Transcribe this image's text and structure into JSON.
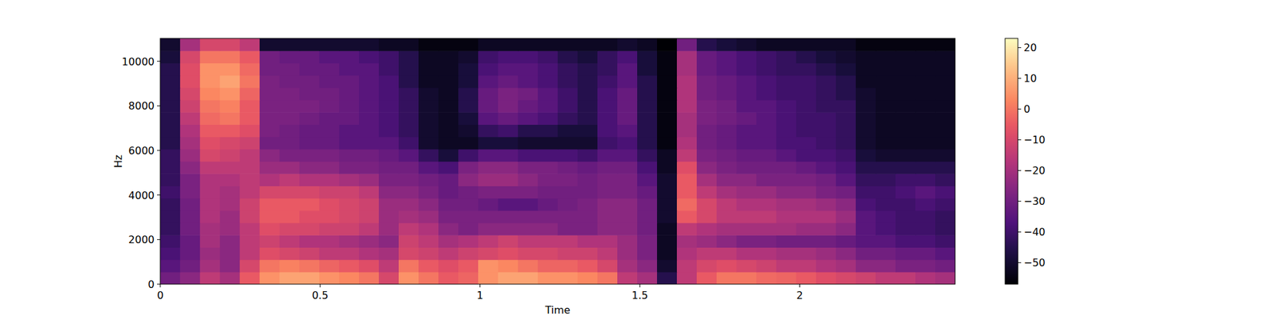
{
  "chart_data": {
    "type": "heatmap",
    "x_label": "Time",
    "y_label": "Hz",
    "xlim": [
      0,
      2.486
    ],
    "ylim": [
      0,
      11025
    ],
    "xticks": [
      0,
      0.5,
      1,
      1.5,
      2
    ],
    "yticks": [
      0,
      2000,
      4000,
      6000,
      8000,
      10000
    ],
    "clim": [
      -57,
      23
    ],
    "cticks": [
      -50,
      -40,
      -30,
      -20,
      -10,
      0,
      10,
      20
    ],
    "values": [
      [
        -30,
        -25,
        -15,
        -20,
        -5,
        5,
        8,
        8,
        5,
        3,
        0,
        -10,
        5,
        0,
        -5,
        -3,
        5,
        8,
        8,
        5,
        5,
        3,
        0,
        -15,
        -20,
        -45,
        -15,
        -5,
        0,
        0,
        -2,
        -3,
        -5,
        -8,
        -10,
        -12,
        -15,
        -15,
        -18,
        -20
      ],
      [
        -35,
        -30,
        -20,
        -25,
        -10,
        0,
        2,
        0,
        -3,
        -5,
        -8,
        -15,
        0,
        -5,
        -8,
        -5,
        5,
        3,
        0,
        -3,
        -3,
        -5,
        -10,
        -20,
        -25,
        -50,
        -15,
        -10,
        -8,
        -10,
        -12,
        -15,
        -15,
        -18,
        -20,
        -25,
        -25,
        -28,
        -28,
        -30
      ],
      [
        -38,
        -32,
        -22,
        -25,
        -15,
        -8,
        -10,
        -12,
        -15,
        -15,
        -18,
        -20,
        -10,
        -12,
        -15,
        -12,
        -10,
        -8,
        -10,
        -10,
        -12,
        -12,
        -15,
        -22,
        -28,
        -52,
        -18,
        -15,
        -15,
        -18,
        -18,
        -20,
        -20,
        -22,
        -25,
        -30,
        -30,
        -32,
        -32,
        -35
      ],
      [
        -40,
        -32,
        -20,
        -25,
        -15,
        -12,
        -15,
        -18,
        -18,
        -20,
        -22,
        -25,
        -12,
        -15,
        -20,
        -18,
        -15,
        -12,
        -15,
        -15,
        -15,
        -18,
        -18,
        -22,
        -28,
        -52,
        -20,
        -22,
        -25,
        -28,
        -28,
        -30,
        -30,
        -30,
        -32,
        -35,
        -35,
        -38,
        -38,
        -40
      ],
      [
        -42,
        -30,
        -20,
        -22,
        -15,
        -8,
        -10,
        -10,
        -12,
        -12,
        -15,
        -22,
        -15,
        -18,
        -25,
        -28,
        -25,
        -25,
        -25,
        -25,
        -28,
        -28,
        -25,
        -25,
        -30,
        -52,
        -15,
        -18,
        -20,
        -20,
        -20,
        -20,
        -22,
        -22,
        -25,
        -35,
        -38,
        -40,
        -40,
        -42
      ],
      [
        -42,
        -30,
        -18,
        -22,
        -12,
        -5,
        -5,
        -8,
        -8,
        -10,
        -12,
        -22,
        -20,
        -22,
        -28,
        -28,
        -28,
        -28,
        -28,
        -28,
        -28,
        -28,
        -25,
        -25,
        -30,
        -50,
        -5,
        -10,
        -15,
        -15,
        -15,
        -18,
        -18,
        -18,
        -22,
        -35,
        -38,
        -40,
        -40,
        -42
      ],
      [
        -42,
        -30,
        -18,
        -20,
        -12,
        -5,
        -5,
        -5,
        -8,
        -10,
        -12,
        -22,
        -22,
        -25,
        -30,
        -30,
        -32,
        -35,
        -35,
        -32,
        -30,
        -28,
        -25,
        -25,
        -30,
        -50,
        -2,
        -10,
        -15,
        -18,
        -18,
        -20,
        -20,
        -22,
        -25,
        -38,
        -40,
        -40,
        -38,
        -40
      ],
      [
        -40,
        -28,
        -18,
        -20,
        -15,
        -10,
        -10,
        -10,
        -12,
        -12,
        -15,
        -25,
        -25,
        -28,
        -32,
        -30,
        -28,
        -28,
        -28,
        -30,
        -30,
        -30,
        -28,
        -28,
        -32,
        -50,
        -5,
        -15,
        -20,
        -22,
        -22,
        -25,
        -25,
        -28,
        -30,
        -40,
        -40,
        -38,
        -35,
        -38
      ],
      [
        -42,
        -28,
        -18,
        -18,
        -15,
        -18,
        -15,
        -18,
        -18,
        -20,
        -22,
        -28,
        -28,
        -30,
        -32,
        -25,
        -22,
        -22,
        -25,
        -28,
        -28,
        -30,
        -28,
        -28,
        -35,
        -50,
        -5,
        -20,
        -25,
        -25,
        -28,
        -28,
        -28,
        -30,
        -35,
        -42,
        -42,
        -40,
        -40,
        -42
      ],
      [
        -42,
        -25,
        -15,
        -15,
        -15,
        -22,
        -22,
        -25,
        -25,
        -28,
        -28,
        -30,
        -30,
        -35,
        -38,
        -28,
        -25,
        -25,
        -28,
        -28,
        -30,
        -32,
        -30,
        -30,
        -38,
        -52,
        -8,
        -25,
        -28,
        -30,
        -30,
        -30,
        -32,
        -35,
        -38,
        -45,
        -45,
        -45,
        -45,
        -45
      ],
      [
        -42,
        -22,
        -10,
        -12,
        -15,
        -25,
        -28,
        -28,
        -28,
        -30,
        -30,
        -32,
        -35,
        -42,
        -48,
        -40,
        -35,
        -35,
        -38,
        -38,
        -38,
        -40,
        -35,
        -35,
        -42,
        -52,
        -15,
        -28,
        -30,
        -32,
        -32,
        -35,
        -38,
        -38,
        -40,
        -48,
        -50,
        -50,
        -50,
        -50
      ],
      [
        -45,
        -20,
        -8,
        -10,
        -12,
        -30,
        -30,
        -32,
        -32,
        -35,
        -35,
        -35,
        -40,
        -50,
        -52,
        -52,
        -48,
        -48,
        -50,
        -50,
        -50,
        -50,
        -40,
        -38,
        -45,
        -55,
        -18,
        -30,
        -32,
        -35,
        -35,
        -38,
        -38,
        -40,
        -42,
        -50,
        -52,
        -52,
        -52,
        -52
      ],
      [
        -45,
        -18,
        -5,
        -5,
        -8,
        -28,
        -30,
        -32,
        -32,
        -35,
        -35,
        -38,
        -42,
        -50,
        -52,
        -50,
        -42,
        -40,
        -45,
        -45,
        -48,
        -48,
        -38,
        -35,
        -45,
        -55,
        -20,
        -30,
        -32,
        -35,
        -35,
        -38,
        -40,
        -40,
        -42,
        -50,
        -52,
        -52,
        -52,
        -52
      ],
      [
        -45,
        -15,
        -2,
        0,
        -5,
        -28,
        -28,
        -30,
        -32,
        -32,
        -35,
        -38,
        -42,
        -50,
        -52,
        -48,
        -35,
        -32,
        -35,
        -38,
        -42,
        -45,
        -38,
        -32,
        -45,
        -55,
        -20,
        -28,
        -30,
        -32,
        -35,
        -38,
        -40,
        -40,
        -42,
        -50,
        -52,
        -52,
        -52,
        -52
      ],
      [
        -45,
        -12,
        0,
        2,
        -5,
        -28,
        -28,
        -28,
        -30,
        -32,
        -35,
        -38,
        -42,
        -50,
        -52,
        -45,
        -32,
        -28,
        -32,
        -35,
        -40,
        -45,
        -38,
        -32,
        -45,
        -55,
        -18,
        -28,
        -30,
        -35,
        -35,
        -38,
        -40,
        -42,
        -42,
        -50,
        -52,
        -52,
        -52,
        -52
      ],
      [
        -45,
        -10,
        3,
        5,
        -3,
        -28,
        -28,
        -30,
        -30,
        -32,
        -35,
        -38,
        -42,
        -50,
        -52,
        -45,
        -32,
        -28,
        -30,
        -35,
        -40,
        -45,
        -38,
        -32,
        -45,
        -55,
        -18,
        -30,
        -32,
        -35,
        -38,
        -40,
        -40,
        -42,
        -45,
        -50,
        -52,
        -52,
        -52,
        -52
      ],
      [
        -45,
        -8,
        5,
        8,
        0,
        -28,
        -30,
        -30,
        -32,
        -32,
        -35,
        -38,
        -45,
        -52,
        -52,
        -48,
        -35,
        -32,
        -35,
        -38,
        -42,
        -45,
        -40,
        -35,
        -45,
        -55,
        -18,
        -30,
        -32,
        -35,
        -38,
        -40,
        -40,
        -42,
        -45,
        -52,
        -52,
        -52,
        -52,
        -52
      ],
      [
        -45,
        -8,
        5,
        5,
        -2,
        -30,
        -30,
        -32,
        -32,
        -35,
        -35,
        -40,
        -45,
        -52,
        -52,
        -48,
        -38,
        -35,
        -35,
        -38,
        -42,
        -45,
        -42,
        -35,
        -48,
        -55,
        -20,
        -32,
        -35,
        -38,
        -40,
        -42,
        -42,
        -45,
        -48,
        -52,
        -52,
        -52,
        -52,
        -52
      ],
      [
        -48,
        -10,
        0,
        0,
        -5,
        -30,
        -32,
        -32,
        -35,
        -35,
        -38,
        -40,
        -45,
        -52,
        -52,
        -50,
        -40,
        -38,
        -38,
        -40,
        -45,
        -48,
        -42,
        -38,
        -48,
        -55,
        -20,
        -32,
        -35,
        -38,
        -40,
        -42,
        -45,
        -48,
        -50,
        -52,
        -52,
        -52,
        -52,
        -52
      ],
      [
        -50,
        -20,
        -10,
        -10,
        -15,
        -50,
        -50,
        -50,
        -50,
        -50,
        -50,
        -52,
        -52,
        -55,
        -55,
        -55,
        -52,
        -52,
        -52,
        -52,
        -52,
        -52,
        -52,
        -50,
        -52,
        -57,
        -30,
        -45,
        -48,
        -50,
        -52,
        -52,
        -52,
        -52,
        -52,
        -55,
        -55,
        -55,
        -55,
        -55
      ]
    ]
  }
}
